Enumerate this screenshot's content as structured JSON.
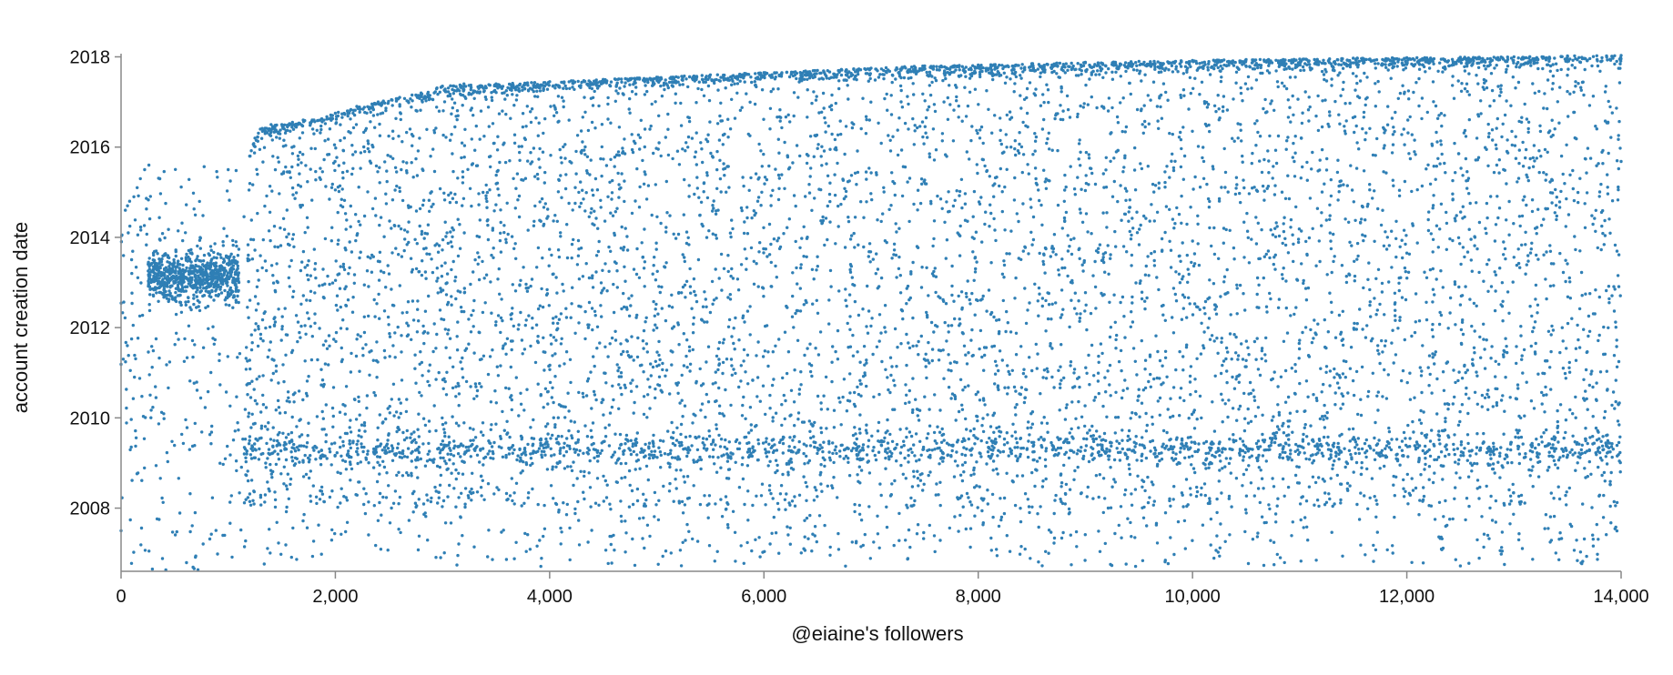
{
  "chart_data": {
    "type": "scatter",
    "title": "",
    "xlabel": "@eiaine's followers",
    "ylabel": "account creation date",
    "xlim": [
      0,
      14000
    ],
    "ylim": [
      2006.6,
      2018.05
    ],
    "xticks": [
      0,
      2000,
      4000,
      6000,
      8000,
      10000,
      12000,
      14000
    ],
    "xtick_labels": [
      "0",
      "2,000",
      "4,000",
      "6,000",
      "8,000",
      "10,000",
      "12,000",
      "14,000"
    ],
    "yticks": [
      2008,
      2010,
      2012,
      2014,
      2016,
      2018
    ],
    "ytick_labels": [
      "2008",
      "2010",
      "2012",
      "2014",
      "2016",
      "2018"
    ],
    "grid": false,
    "legend": "none",
    "colors": {
      "points": "#2f7fb5"
    },
    "series": [
      {
        "description_of_distribution": "~14000 followers; each point is one follower ordered by follow position (x) and account creation date (y)",
        "points": [
          [
            0,
            2007.5
          ],
          [
            20,
            2011.3
          ],
          [
            40,
            2014.6
          ],
          [
            60,
            2014.7
          ],
          [
            80,
            2014.8
          ],
          [
            100,
            2013.2
          ],
          [
            120,
            2014.9
          ],
          [
            150,
            2015.1
          ],
          [
            180,
            2015.3
          ],
          [
            220,
            2015.5
          ],
          [
            260,
            2015.6
          ],
          [
            300,
            2013.5
          ],
          [
            350,
            2013.2
          ],
          [
            400,
            2013.0
          ],
          [
            450,
            2013.3
          ],
          [
            500,
            2013.1
          ],
          [
            550,
            2013.4
          ],
          [
            600,
            2012.9
          ],
          [
            650,
            2013.2
          ],
          [
            700,
            2013.0
          ],
          [
            750,
            2013.3
          ],
          [
            800,
            2013.1
          ],
          [
            850,
            2012.8
          ],
          [
            900,
            2013.2
          ],
          [
            950,
            2013.0
          ],
          [
            1000,
            2015.5
          ],
          [
            1050,
            2013.1
          ],
          [
            1100,
            2013.0
          ],
          [
            1150,
            2009.2
          ],
          [
            1200,
            2015.8
          ],
          [
            1250,
            2016.2
          ],
          [
            1300,
            2016.4
          ],
          [
            1400,
            2016.5
          ],
          [
            1500,
            2016.5
          ],
          [
            1600,
            2016.55
          ],
          [
            1700,
            2016.6
          ],
          [
            1800,
            2016.6
          ],
          [
            2000,
            2016.75
          ],
          [
            2200,
            2016.9
          ],
          [
            2400,
            2017.0
          ],
          [
            2600,
            2017.1
          ],
          [
            2800,
            2017.2
          ],
          [
            3000,
            2017.35
          ],
          [
            3200,
            2017.4
          ],
          [
            3500,
            2017.4
          ],
          [
            4000,
            2017.45
          ],
          [
            4500,
            2017.5
          ],
          [
            5000,
            2017.55
          ],
          [
            5500,
            2017.6
          ],
          [
            6000,
            2017.65
          ],
          [
            6500,
            2017.7
          ],
          [
            7000,
            2017.75
          ],
          [
            7500,
            2017.8
          ],
          [
            8000,
            2017.82
          ],
          [
            8500,
            2017.85
          ],
          [
            9000,
            2017.88
          ],
          [
            9500,
            2017.9
          ],
          [
            10000,
            2017.92
          ],
          [
            10500,
            2017.94
          ],
          [
            11000,
            2017.95
          ],
          [
            11500,
            2017.97
          ],
          [
            12000,
            2017.98
          ],
          [
            12500,
            2017.99
          ],
          [
            13000,
            2018.0
          ],
          [
            13500,
            2018.02
          ],
          [
            14000,
            2018.03
          ]
        ]
      }
    ]
  }
}
